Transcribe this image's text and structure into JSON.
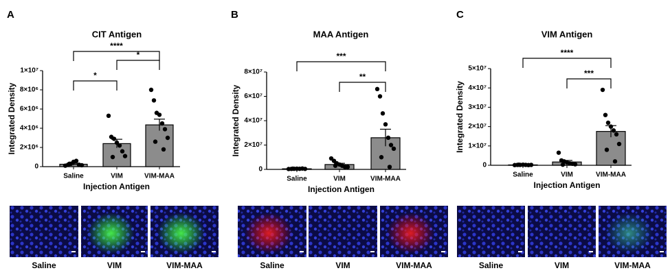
{
  "chart_data": [
    {
      "type": "bar",
      "panel": "A",
      "title": "CIT Antigen",
      "y_label": "Integrated Density",
      "x_label": "Injection Antigen",
      "categories": [
        "Saline",
        "VIM",
        "VIM-MAA"
      ],
      "values": [
        250000,
        2400000,
        4350000
      ],
      "errors": [
        100000,
        450000,
        600000
      ],
      "points": [
        [
          100000,
          200000,
          300000,
          500000,
          600000,
          200000,
          150000,
          300000
        ],
        [
          5300000,
          3100000,
          2900000,
          2500000,
          2200000,
          1600000,
          1100000,
          1000000
        ],
        [
          8000000,
          6900000,
          5600000,
          5400000,
          4500000,
          3900000,
          3000000,
          2600000,
          1800000
        ]
      ],
      "comparisons": [
        {
          "groups": [
            0,
            1
          ],
          "label": "*"
        },
        {
          "groups": [
            1,
            2
          ],
          "label": "*"
        },
        {
          "groups": [
            0,
            2
          ],
          "label": "****"
        }
      ],
      "color": "#8c8c8c",
      "point_color": "#000000",
      "ylim": [
        0,
        10000000
      ],
      "yticks": [
        0,
        {
          "value": 2000000,
          "label": "2×10⁶"
        },
        {
          "value": 4000000,
          "label": "4×10⁶"
        },
        {
          "value": 6000000,
          "label": "6×10⁶"
        },
        {
          "value": 8000000,
          "label": "8×10⁶"
        },
        {
          "value": 10000000,
          "label": "1×10⁷"
        }
      ]
    },
    {
      "type": "bar",
      "panel": "B",
      "title": "MAA Antigen",
      "y_label": "Integrated Density",
      "x_label": "Injection Antigen",
      "categories": [
        "Saline",
        "VIM",
        "VIM-MAA"
      ],
      "values": [
        500000,
        4000000,
        26000000
      ],
      "errors": [
        200000,
        1000000,
        7000000
      ],
      "points": [
        [
          300000,
          400000,
          500000,
          600000,
          500000,
          700000,
          400000,
          600000
        ],
        [
          9000000,
          7000000,
          5000000,
          4000000,
          3000000,
          2000000,
          2000000,
          3000000
        ],
        [
          66000000,
          60000000,
          46000000,
          37000000,
          26000000,
          20000000,
          17000000,
          10000000,
          2000000
        ]
      ],
      "comparisons": [
        {
          "groups": [
            1,
            2
          ],
          "label": "**"
        },
        {
          "groups": [
            0,
            2
          ],
          "label": "***"
        }
      ],
      "color": "#8c8c8c",
      "point_color": "#000000",
      "ylim": [
        0,
        80000000
      ],
      "yticks": [
        0,
        {
          "value": 20000000,
          "label": "2×10⁷"
        },
        {
          "value": 40000000,
          "label": "4×10⁷"
        },
        {
          "value": 60000000,
          "label": "6×10⁷"
        },
        {
          "value": 80000000,
          "label": "8×10⁷"
        }
      ]
    },
    {
      "type": "bar",
      "panel": "C",
      "title": "VIM Antigen",
      "y_label": "Integrated Density",
      "x_label": "Injection Antigen",
      "categories": [
        "Saline",
        "VIM",
        "VIM-MAA"
      ],
      "values": [
        200000,
        1700000,
        17500000
      ],
      "errors": [
        100000,
        800000,
        3000000
      ],
      "points": [
        [
          100000,
          200000,
          200000,
          300000,
          200000,
          100000,
          200000,
          300000
        ],
        [
          6500000,
          2500000,
          2000000,
          1500000,
          1000000,
          800000,
          500000,
          300000
        ],
        [
          39000000,
          26000000,
          22000000,
          20000000,
          18000000,
          16000000,
          11000000,
          8000000,
          2000000
        ]
      ],
      "comparisons": [
        {
          "groups": [
            1,
            2
          ],
          "label": "***"
        },
        {
          "groups": [
            0,
            2
          ],
          "label": "****"
        }
      ],
      "color": "#8c8c8c",
      "point_color": "#000000",
      "ylim": [
        0,
        50000000
      ],
      "yticks": [
        0,
        {
          "value": 10000000,
          "label": "1×10⁷"
        },
        {
          "value": 20000000,
          "label": "2×10⁷"
        },
        {
          "value": 30000000,
          "label": "3×10⁷"
        },
        {
          "value": 40000000,
          "label": "4×10⁷"
        },
        {
          "value": 50000000,
          "label": "5×10⁷"
        }
      ]
    }
  ]
}
